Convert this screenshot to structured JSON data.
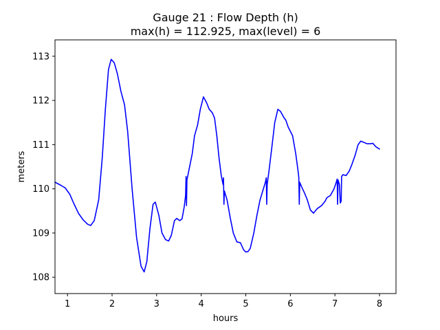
{
  "chart_data": {
    "type": "line",
    "title": "Gauge 21 : Flow Depth (h)",
    "subtitle": "max(h) = 112.925,    max(level) = 6",
    "xlabel": "hours",
    "ylabel": "meters",
    "xlim": [
      0.72,
      8.37
    ],
    "ylim": [
      107.63,
      113.37
    ],
    "xticks": [
      1,
      2,
      3,
      4,
      5,
      6,
      7,
      8
    ],
    "xtick_labels": [
      "1",
      "2",
      "3",
      "4",
      "5",
      "6",
      "7",
      "8"
    ],
    "yticks": [
      108,
      109,
      110,
      111,
      112,
      113
    ],
    "ytick_labels": [
      "108",
      "109",
      "110",
      "111",
      "112",
      "113"
    ],
    "grid": false,
    "legend": "none",
    "colors": {
      "series": "#0000ff",
      "axes": "#000000",
      "background": "#ffffff"
    },
    "series": [
      {
        "color": "#0000ff",
        "points": [
          [
            0.72,
            110.15
          ],
          [
            0.85,
            110.08
          ],
          [
            0.95,
            110.02
          ],
          [
            1.05,
            109.88
          ],
          [
            1.15,
            109.65
          ],
          [
            1.25,
            109.44
          ],
          [
            1.35,
            109.3
          ],
          [
            1.45,
            109.2
          ],
          [
            1.52,
            109.17
          ],
          [
            1.6,
            109.28
          ],
          [
            1.7,
            109.75
          ],
          [
            1.78,
            110.7
          ],
          [
            1.85,
            111.8
          ],
          [
            1.92,
            112.7
          ],
          [
            1.98,
            112.93
          ],
          [
            2.05,
            112.85
          ],
          [
            2.12,
            112.6
          ],
          [
            2.2,
            112.2
          ],
          [
            2.28,
            111.9
          ],
          [
            2.35,
            111.3
          ],
          [
            2.45,
            110.0
          ],
          [
            2.55,
            108.9
          ],
          [
            2.65,
            108.25
          ],
          [
            2.72,
            108.12
          ],
          [
            2.78,
            108.35
          ],
          [
            2.85,
            109.1
          ],
          [
            2.92,
            109.65
          ],
          [
            2.97,
            109.7
          ],
          [
            3.05,
            109.4
          ],
          [
            3.12,
            109.0
          ],
          [
            3.2,
            108.85
          ],
          [
            3.27,
            108.82
          ],
          [
            3.33,
            108.95
          ],
          [
            3.4,
            109.28
          ],
          [
            3.45,
            109.33
          ],
          [
            3.52,
            109.28
          ],
          [
            3.57,
            109.32
          ],
          [
            3.62,
            109.6
          ],
          [
            3.65,
            109.85
          ],
          [
            3.66,
            110.28
          ],
          [
            3.67,
            109.62
          ],
          [
            3.68,
            110.2
          ],
          [
            3.72,
            110.4
          ],
          [
            3.8,
            110.8
          ],
          [
            3.85,
            111.2
          ],
          [
            3.92,
            111.45
          ],
          [
            3.98,
            111.8
          ],
          [
            4.05,
            112.08
          ],
          [
            4.12,
            111.95
          ],
          [
            4.18,
            111.8
          ],
          [
            4.25,
            111.72
          ],
          [
            4.3,
            111.6
          ],
          [
            4.35,
            111.2
          ],
          [
            4.4,
            110.7
          ],
          [
            4.45,
            110.3
          ],
          [
            4.49,
            110.1
          ],
          [
            4.5,
            110.25
          ],
          [
            4.51,
            109.65
          ],
          [
            4.52,
            109.95
          ],
          [
            4.58,
            109.75
          ],
          [
            4.65,
            109.35
          ],
          [
            4.72,
            109.0
          ],
          [
            4.8,
            108.8
          ],
          [
            4.88,
            108.78
          ],
          [
            4.95,
            108.62
          ],
          [
            5.0,
            108.57
          ],
          [
            5.05,
            108.58
          ],
          [
            5.1,
            108.65
          ],
          [
            5.18,
            109.0
          ],
          [
            5.25,
            109.4
          ],
          [
            5.32,
            109.75
          ],
          [
            5.38,
            109.95
          ],
          [
            5.44,
            110.15
          ],
          [
            5.46,
            110.25
          ],
          [
            5.47,
            109.65
          ],
          [
            5.48,
            110.1
          ],
          [
            5.52,
            110.4
          ],
          [
            5.58,
            110.9
          ],
          [
            5.65,
            111.5
          ],
          [
            5.72,
            111.8
          ],
          [
            5.78,
            111.75
          ],
          [
            5.85,
            111.62
          ],
          [
            5.9,
            111.55
          ],
          [
            5.95,
            111.4
          ],
          [
            6.05,
            111.2
          ],
          [
            6.12,
            110.8
          ],
          [
            6.18,
            110.35
          ],
          [
            6.19,
            110.25
          ],
          [
            6.2,
            109.65
          ],
          [
            6.21,
            110.15
          ],
          [
            6.25,
            110.05
          ],
          [
            6.32,
            109.9
          ],
          [
            6.38,
            109.75
          ],
          [
            6.45,
            109.52
          ],
          [
            6.52,
            109.45
          ],
          [
            6.6,
            109.55
          ],
          [
            6.7,
            109.62
          ],
          [
            6.78,
            109.72
          ],
          [
            6.82,
            109.8
          ],
          [
            6.9,
            109.85
          ],
          [
            6.98,
            110.0
          ],
          [
            7.03,
            110.15
          ],
          [
            7.05,
            110.22
          ],
          [
            7.06,
            109.65
          ],
          [
            7.07,
            110.2
          ],
          [
            7.1,
            110.1
          ],
          [
            7.12,
            109.68
          ],
          [
            7.14,
            109.72
          ],
          [
            7.15,
            110.28
          ],
          [
            7.18,
            110.32
          ],
          [
            7.25,
            110.3
          ],
          [
            7.32,
            110.4
          ],
          [
            7.38,
            110.55
          ],
          [
            7.45,
            110.75
          ],
          [
            7.52,
            111.0
          ],
          [
            7.58,
            111.08
          ],
          [
            7.65,
            111.05
          ],
          [
            7.72,
            111.02
          ],
          [
            7.8,
            111.02
          ],
          [
            7.85,
            111.03
          ],
          [
            7.92,
            110.95
          ],
          [
            8.0,
            110.9
          ]
        ]
      }
    ]
  }
}
